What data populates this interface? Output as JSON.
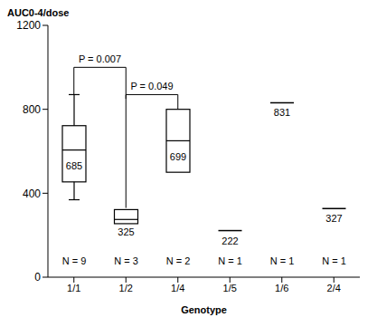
{
  "chart_data": {
    "type": "box",
    "y_label": "AUC0-4/dose",
    "x_label": "Genotype",
    "categories": [
      "1/1",
      "1/2",
      "1/4",
      "1/5",
      "1/6",
      "2/4"
    ],
    "boxes": [
      {
        "min": 369,
        "q1": 454,
        "median": 606,
        "q3": 722,
        "max": 870
      },
      {
        "q1": 255,
        "median": 275,
        "q3": 322
      },
      {
        "q1": 500,
        "median": 650,
        "q3": 800
      },
      {
        "median": 222
      },
      {
        "median": 831
      },
      {
        "median": 327
      }
    ],
    "means": [
      685,
      325,
      699,
      222,
      831,
      327
    ],
    "n_labels": [
      "N = 9",
      "N = 3",
      "N = 2",
      "N = 1",
      "N = 1",
      "N = 1"
    ],
    "comparisons": [
      {
        "from": "1/1",
        "to": "1/2",
        "y": 1000,
        "ends": [
          870,
          850
        ],
        "label": "P = 0.007"
      },
      {
        "from": "1/2",
        "to": "1/4",
        "y": 870,
        "ends": [
          330,
          800
        ],
        "label": "P = 0.049"
      }
    ],
    "ylim": [
      0,
      1200
    ],
    "yticks": [
      0,
      400,
      800,
      1200
    ],
    "color": "#000000"
  }
}
